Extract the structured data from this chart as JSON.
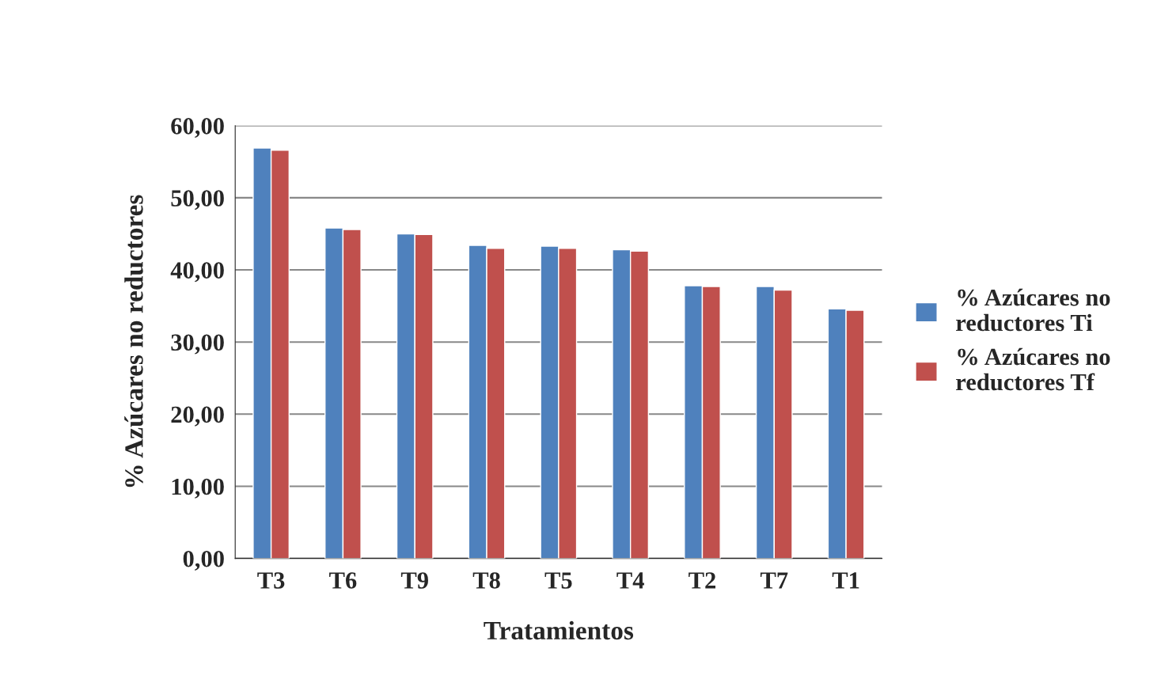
{
  "chart_data": {
    "type": "bar",
    "xlabel": "Tratamientos",
    "ylabel": "% Azúcares no reductores",
    "categories": [
      "T3",
      "T6",
      "T9",
      "T8",
      "T5",
      "T4",
      "T2",
      "T7",
      "T1"
    ],
    "series": [
      {
        "name": "% Azúcares no reductores Ti",
        "color": "#4f81bd",
        "values": [
          56.9,
          45.8,
          45.0,
          43.4,
          43.3,
          42.8,
          37.8,
          37.7,
          34.6
        ]
      },
      {
        "name": "% Azúcares no reductores Tf",
        "color": "#c0504d",
        "values": [
          56.6,
          45.6,
          44.9,
          43.0,
          43.0,
          42.6,
          37.7,
          37.2,
          34.4
        ]
      }
    ],
    "ylim": [
      0,
      60
    ],
    "yticks": [
      {
        "value": 0,
        "label": "0,00"
      },
      {
        "value": 10,
        "label": "10,00"
      },
      {
        "value": 20,
        "label": "20,00"
      },
      {
        "value": 30,
        "label": "30,00"
      },
      {
        "value": 40,
        "label": "40,00"
      },
      {
        "value": 50,
        "label": "50,00"
      },
      {
        "value": 60,
        "label": "60,00"
      }
    ],
    "grid": "y",
    "legend": "right"
  }
}
